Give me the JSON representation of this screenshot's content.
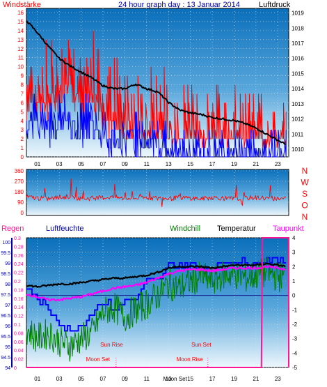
{
  "header": {
    "left_title": "Windstärke",
    "center_title": "24 hour graph day : 13 Januar 2014",
    "right_title": "Luftdruck"
  },
  "colors": {
    "background": "#ffffff",
    "plot_top": "#1078c0",
    "plot_bottom": "#e8f4fb",
    "wind_speed": "#ff0000",
    "gust_band": "#ff0000",
    "wind_avg": "#0000ff",
    "pressure": "#000000",
    "wind_dir": "#ff0000",
    "humidity": "#0000ff",
    "windchill": "#008000",
    "temperature": "#000000",
    "dewpoint": "#ff00ff",
    "rain": "#ff1493",
    "moon": "#ff1493",
    "sun_labels": "#ff0000",
    "axis_text_red": "#ff0000",
    "axis_text_blue": "#0000b0"
  },
  "chart_data": [
    {
      "type": "line",
      "name_key": "wind_pressure",
      "x_ticks": [
        "01",
        "03",
        "05",
        "07",
        "09",
        "11",
        "13",
        "15",
        "17",
        "19",
        "21",
        "23"
      ],
      "x_range_hours": [
        0,
        24
      ],
      "left_axis": {
        "label": "Windstärke",
        "min": 0,
        "max": 16,
        "ticks": [
          "0",
          "1",
          "2",
          "3",
          "4",
          "5",
          "6",
          "7",
          "8",
          "9",
          "10",
          "11",
          "12",
          "13",
          "14",
          "15",
          "16"
        ]
      },
      "right_axis": {
        "label": "Luftdruck",
        "min": 1009.5,
        "max": 1019.3,
        "ticks": [
          "1010",
          "1011",
          "1012",
          "1013",
          "1014",
          "1015",
          "1016",
          "1017",
          "1018",
          "1019"
        ]
      },
      "series": [
        {
          "name": "Luftdruck",
          "axis": "right",
          "x": [
            0,
            1,
            2,
            3,
            4,
            5,
            6,
            7,
            8,
            9,
            10,
            11,
            12,
            13,
            14,
            15,
            16,
            17,
            18,
            19,
            20,
            21,
            22,
            23,
            23.8
          ],
          "values": [
            1018.5,
            1017.7,
            1016.8,
            1016.0,
            1015.5,
            1015.1,
            1014.7,
            1014.2,
            1014.0,
            1014.0,
            1014.3,
            1014.0,
            1013.8,
            1013.1,
            1012.6,
            1012.4,
            1012.3,
            1012.1,
            1012.0,
            1011.9,
            1011.7,
            1011.4,
            1011.0,
            1010.6,
            1010.3
          ]
        },
        {
          "name": "Windböen",
          "axis": "left",
          "x": [
            0,
            1,
            2,
            3,
            4,
            5,
            6,
            7,
            8,
            9,
            10,
            11,
            12,
            13,
            14,
            15,
            16,
            17,
            18,
            19,
            20,
            21,
            22,
            23,
            23.8
          ],
          "values": [
            8,
            9,
            9,
            10,
            11,
            9,
            10,
            7,
            7,
            6,
            6,
            6,
            6,
            5,
            4,
            4,
            4,
            4,
            4,
            4,
            4,
            3,
            3,
            3,
            3
          ]
        },
        {
          "name": "Windmittel",
          "axis": "left",
          "x": [
            0,
            1,
            2,
            3,
            4,
            5,
            6,
            7,
            8,
            9,
            10,
            11,
            12,
            13,
            14,
            15,
            16,
            17,
            18,
            19,
            20,
            21,
            22,
            23,
            23.8
          ],
          "values": [
            5,
            5,
            4,
            5,
            5,
            4,
            5,
            3,
            3,
            3,
            3,
            3,
            3,
            1,
            1,
            1,
            1,
            1,
            1,
            1,
            1,
            1,
            1,
            1,
            1
          ]
        }
      ]
    },
    {
      "type": "line",
      "name_key": "wind_direction",
      "x_range_hours": [
        0,
        24
      ],
      "left_axis": {
        "min": 0,
        "max": 360,
        "ticks": [
          "0",
          "90",
          "180",
          "270",
          "360"
        ]
      },
      "right_labels": [
        "N",
        "W",
        "S",
        "O",
        "N"
      ],
      "series": [
        {
          "name": "Windrichtung",
          "x": [
            0,
            1,
            2,
            3,
            4,
            5,
            6,
            7,
            8,
            9,
            10,
            11,
            12,
            13,
            14,
            15,
            16,
            17,
            18,
            19,
            20,
            21,
            22,
            23,
            23.8
          ],
          "values": [
            135,
            125,
            120,
            130,
            140,
            120,
            125,
            130,
            135,
            120,
            125,
            130,
            125,
            120,
            130,
            125,
            120,
            130,
            125,
            120,
            125,
            130,
            125,
            120,
            130
          ]
        }
      ]
    },
    {
      "type": "line",
      "name_key": "temp_humidity",
      "legend": [
        "Regen",
        "Luftfeuchte",
        "Windchill",
        "Temperatur",
        "Taupunkt"
      ],
      "x_ticks": [
        "01",
        "03",
        "05",
        "07",
        "09",
        "11",
        "13",
        "15",
        "17",
        "19",
        "21",
        "23"
      ],
      "x_range_hours": [
        0,
        24
      ],
      "humidity_axis": {
        "min": 94,
        "max": 100.2,
        "ticks": [
          "94",
          "94.5",
          "95",
          "95.5",
          "96",
          "96.5",
          "97",
          "97.5",
          "98",
          "98.5",
          "99",
          "99.5",
          "100"
        ]
      },
      "rain_axis": {
        "min": 0,
        "max": 0.3,
        "ticks": [
          "0",
          "0.02",
          "0.04",
          "0.06",
          "0.08",
          "0.1",
          "0.12",
          "0.14",
          "0.16",
          "0.18",
          "0.2",
          "0.22",
          "0.24",
          "0.26",
          "0.28",
          "0.3"
        ]
      },
      "temp_axis": {
        "min": -5,
        "max": 4,
        "ticks": [
          "-5",
          "-4",
          "-3",
          "-2",
          "-1",
          "0",
          "1",
          "2",
          "3",
          "4"
        ]
      },
      "series": [
        {
          "name": "Temperatur",
          "axis": "temp",
          "x": [
            0,
            1,
            2,
            3,
            4,
            5,
            6,
            7,
            8,
            9,
            10,
            11,
            12,
            13,
            14,
            15,
            16,
            17,
            18,
            19,
            20,
            21,
            22,
            23,
            23.8
          ],
          "values": [
            0.7,
            0.6,
            0.7,
            0.8,
            0.8,
            0.9,
            1.0,
            1.1,
            1.2,
            1.2,
            1.3,
            1.4,
            1.6,
            1.9,
            2.0,
            2.0,
            2.0,
            1.9,
            2.0,
            2.1,
            2.1,
            2.1,
            2.2,
            2.1,
            2.0
          ]
        },
        {
          "name": "Taupunkt",
          "axis": "temp",
          "x": [
            0,
            1,
            2,
            3,
            4,
            5,
            6,
            7,
            8,
            9,
            10,
            11,
            12,
            13,
            14,
            15,
            16,
            17,
            18,
            19,
            20,
            21,
            22,
            23,
            23.8
          ],
          "values": [
            0.1,
            -0.1,
            -0.3,
            -0.3,
            -0.2,
            -0.1,
            0.1,
            0.3,
            0.5,
            0.6,
            0.7,
            0.9,
            1.2,
            1.5,
            1.7,
            1.8,
            1.8,
            1.7,
            1.8,
            1.9,
            1.9,
            1.9,
            2.0,
            1.9,
            1.8
          ]
        },
        {
          "name": "Windchill",
          "axis": "temp",
          "x": [
            0,
            1,
            2,
            3,
            4,
            5,
            6,
            7,
            8,
            9,
            10,
            11,
            12,
            13,
            14,
            15,
            16,
            17,
            18,
            19,
            20,
            21,
            22,
            23,
            23.8
          ],
          "values": [
            -2.3,
            -3.0,
            -2.6,
            -3.2,
            -3.5,
            -3.0,
            -2.6,
            -1.2,
            -0.8,
            -1.5,
            -1.0,
            -0.6,
            0.0,
            0.8,
            0.5,
            1.0,
            1.3,
            1.0,
            1.4,
            1.5,
            1.2,
            1.4,
            1.6,
            1.3,
            1.4
          ]
        },
        {
          "name": "Luftfeuchte",
          "axis": "humidity",
          "x": [
            0,
            1,
            2,
            3,
            4,
            5,
            6,
            7,
            8,
            9,
            10,
            11,
            12,
            13,
            14,
            15,
            16,
            17,
            18,
            19,
            20,
            21,
            22,
            23,
            23.8
          ],
          "values": [
            97.9,
            97.2,
            96.8,
            96.1,
            95.8,
            96.1,
            96.6,
            97.2,
            96.8,
            97.2,
            97.3,
            98.1,
            98.1,
            98.8,
            98.9,
            98.9,
            98.7,
            98.9,
            99.0,
            99.0,
            99.0,
            99.0,
            99.1,
            99.1,
            99.1
          ]
        },
        {
          "name": "Regen",
          "axis": "rain",
          "x": [
            0,
            21.5,
            21.6,
            24
          ],
          "values": [
            0,
            0,
            0.3,
            0.3
          ]
        }
      ],
      "annotations": [
        {
          "label": "Sun Rise",
          "hour": 7.8
        },
        {
          "label": "Sun Set",
          "hour": 16.0
        },
        {
          "label": "Moon Set",
          "hour": 8.2
        },
        {
          "label": "Moon Rise",
          "hour": 16.6
        },
        {
          "label": "Moon Set",
          "hour": 13.4
        }
      ]
    }
  ]
}
